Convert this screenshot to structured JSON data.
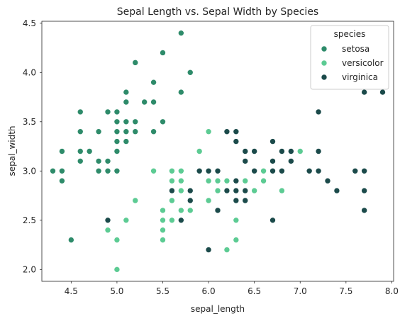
{
  "chart_data": {
    "type": "scatter",
    "title": "Sepal Length vs. Sepal Width by Species",
    "xlabel": "sepal_length",
    "ylabel": "sepal_width",
    "xlim": [
      4.18,
      8.02
    ],
    "ylim": [
      1.88,
      4.52
    ],
    "xticks": [
      "4.5",
      "5.0",
      "5.5",
      "6.0",
      "6.5",
      "7.0",
      "7.5",
      "8.0"
    ],
    "yticks": [
      "2.0",
      "2.5",
      "3.0",
      "3.5",
      "4.0",
      "4.5"
    ],
    "grid": false,
    "legend": {
      "title": "species",
      "position": "top-right"
    },
    "series": [
      {
        "name": "setosa",
        "color": "#2e8b6a",
        "points": [
          [
            4.3,
            3.0
          ],
          [
            4.4,
            3.2
          ],
          [
            4.4,
            3.0
          ],
          [
            4.4,
            2.9
          ],
          [
            4.5,
            2.3
          ],
          [
            4.6,
            3.6
          ],
          [
            4.6,
            3.4
          ],
          [
            4.6,
            3.2
          ],
          [
            4.6,
            3.1
          ],
          [
            4.7,
            3.2
          ],
          [
            4.8,
            3.4
          ],
          [
            4.8,
            3.1
          ],
          [
            4.8,
            3.0
          ],
          [
            4.9,
            3.6
          ],
          [
            4.9,
            3.1
          ],
          [
            4.9,
            3.0
          ],
          [
            5.0,
            3.6
          ],
          [
            5.0,
            3.5
          ],
          [
            5.0,
            3.4
          ],
          [
            5.0,
            3.3
          ],
          [
            5.0,
            3.2
          ],
          [
            5.0,
            3.0
          ],
          [
            5.1,
            3.8
          ],
          [
            5.1,
            3.7
          ],
          [
            5.1,
            3.5
          ],
          [
            5.1,
            3.4
          ],
          [
            5.1,
            3.3
          ],
          [
            5.2,
            4.1
          ],
          [
            5.2,
            3.5
          ],
          [
            5.2,
            3.4
          ],
          [
            5.3,
            3.7
          ],
          [
            5.4,
            3.9
          ],
          [
            5.4,
            3.7
          ],
          [
            5.4,
            3.4
          ],
          [
            5.5,
            4.2
          ],
          [
            5.5,
            3.5
          ],
          [
            5.7,
            4.4
          ],
          [
            5.7,
            3.8
          ],
          [
            5.8,
            4.0
          ]
        ]
      },
      {
        "name": "versicolor",
        "color": "#5ccb93",
        "points": [
          [
            4.9,
            2.4
          ],
          [
            5.0,
            2.3
          ],
          [
            5.0,
            2.0
          ],
          [
            5.1,
            2.5
          ],
          [
            5.2,
            2.7
          ],
          [
            5.4,
            3.0
          ],
          [
            5.5,
            2.6
          ],
          [
            5.5,
            2.5
          ],
          [
            5.5,
            2.4
          ],
          [
            5.5,
            2.3
          ],
          [
            5.6,
            3.0
          ],
          [
            5.6,
            2.9
          ],
          [
            5.6,
            2.7
          ],
          [
            5.6,
            2.5
          ],
          [
            5.7,
            3.0
          ],
          [
            5.7,
            2.9
          ],
          [
            5.7,
            2.8
          ],
          [
            5.7,
            2.6
          ],
          [
            5.8,
            2.7
          ],
          [
            5.8,
            2.6
          ],
          [
            5.9,
            3.2
          ],
          [
            5.9,
            3.0
          ],
          [
            6.0,
            3.4
          ],
          [
            6.0,
            2.9
          ],
          [
            6.0,
            2.7
          ],
          [
            6.0,
            2.2
          ],
          [
            6.1,
            3.0
          ],
          [
            6.1,
            2.9
          ],
          [
            6.1,
            2.8
          ],
          [
            6.2,
            2.9
          ],
          [
            6.2,
            2.2
          ],
          [
            6.3,
            3.3
          ],
          [
            6.3,
            2.5
          ],
          [
            6.3,
            2.3
          ],
          [
            6.4,
            3.2
          ],
          [
            6.4,
            2.9
          ],
          [
            6.5,
            2.8
          ],
          [
            6.6,
            3.0
          ],
          [
            6.6,
            2.9
          ],
          [
            6.7,
            3.1
          ],
          [
            6.7,
            3.0
          ],
          [
            6.8,
            2.8
          ],
          [
            6.9,
            3.1
          ],
          [
            7.0,
            3.2
          ]
        ]
      },
      {
        "name": "virginica",
        "color": "#1b4a4a",
        "points": [
          [
            4.9,
            2.5
          ],
          [
            5.6,
            2.8
          ],
          [
            5.7,
            2.5
          ],
          [
            5.8,
            2.8
          ],
          [
            5.8,
            2.7
          ],
          [
            5.9,
            3.0
          ],
          [
            6.0,
            3.0
          ],
          [
            6.0,
            2.2
          ],
          [
            6.1,
            3.0
          ],
          [
            6.1,
            2.6
          ],
          [
            6.2,
            3.4
          ],
          [
            6.2,
            2.8
          ],
          [
            6.3,
            3.4
          ],
          [
            6.3,
            3.3
          ],
          [
            6.3,
            2.9
          ],
          [
            6.3,
            2.8
          ],
          [
            6.3,
            2.7
          ],
          [
            6.4,
            3.2
          ],
          [
            6.4,
            3.1
          ],
          [
            6.4,
            2.8
          ],
          [
            6.4,
            2.7
          ],
          [
            6.5,
            3.2
          ],
          [
            6.5,
            3.0
          ],
          [
            6.7,
            3.3
          ],
          [
            6.7,
            3.1
          ],
          [
            6.7,
            3.0
          ],
          [
            6.7,
            2.5
          ],
          [
            6.8,
            3.2
          ],
          [
            6.8,
            3.0
          ],
          [
            6.9,
            3.2
          ],
          [
            6.9,
            3.1
          ],
          [
            7.1,
            3.0
          ],
          [
            7.2,
            3.6
          ],
          [
            7.2,
            3.2
          ],
          [
            7.2,
            3.0
          ],
          [
            7.3,
            2.9
          ],
          [
            7.4,
            2.8
          ],
          [
            7.6,
            3.0
          ],
          [
            7.7,
            3.8
          ],
          [
            7.7,
            3.0
          ],
          [
            7.7,
            2.8
          ],
          [
            7.7,
            2.6
          ],
          [
            7.9,
            3.8
          ]
        ]
      }
    ]
  }
}
